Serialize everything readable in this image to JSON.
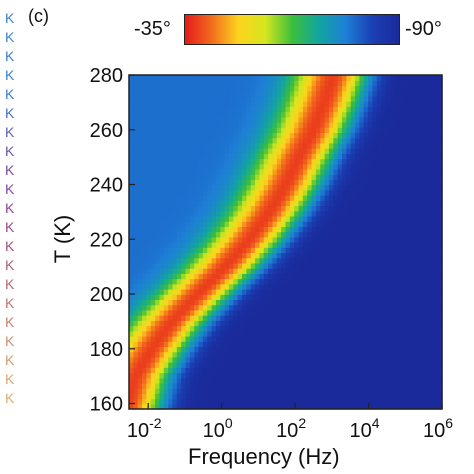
{
  "panel_label": "(c)",
  "colorbar": {
    "min_label": "-35°",
    "max_label": "-90°",
    "stops": [
      "#e41a1c",
      "#f26b1d",
      "#fdd31e",
      "#d6e61e",
      "#3cbf3a",
      "#12a5a0",
      "#1e7fd6",
      "#1a3fb4",
      "#1a2a9a"
    ]
  },
  "left_k_labels": {
    "text": "K",
    "colors": [
      "#3b7fd0",
      "#3b7fd0",
      "#3b7fd0",
      "#3b7fd0",
      "#3b7fd0",
      "#4a6fc4",
      "#5a60b8",
      "#6a55ac",
      "#7a4ca6",
      "#85469f",
      "#8f4496",
      "#9a488d",
      "#a35384",
      "#ac5f7d",
      "#b56b77",
      "#bd7872",
      "#c5856f",
      "#cc916e",
      "#d29c6f",
      "#d8a771",
      "#dcae73"
    ]
  },
  "chart_data": {
    "type": "heatmap",
    "title": "",
    "xlabel": "Frequency (Hz)",
    "ylabel": "T (K)",
    "x_scale": "log",
    "xlim": [
      0.003,
      1000000
    ],
    "ylim": [
      158,
      280
    ],
    "x_ticks": [
      {
        "value": 0.01,
        "base": "10",
        "exp": "-2"
      },
      {
        "value": 1,
        "base": "10",
        "exp": "0"
      },
      {
        "value": 100,
        "base": "10",
        "exp": "2"
      },
      {
        "value": 10000,
        "base": "10",
        "exp": "4"
      },
      {
        "value": 1000000,
        "base": "10",
        "exp": "6"
      }
    ],
    "y_ticks": [
      160,
      180,
      200,
      220,
      240,
      260,
      280
    ],
    "colorbar_range": [
      -35,
      -90
    ],
    "peak_ridge": [
      {
        "T": 158,
        "log_f": -2.6,
        "phase": -37
      },
      {
        "T": 170,
        "log_f": -2.35,
        "phase": -37
      },
      {
        "T": 180,
        "log_f": -1.9,
        "phase": -38
      },
      {
        "T": 190,
        "log_f": -1.35,
        "phase": -38
      },
      {
        "T": 200,
        "log_f": -0.65,
        "phase": -39
      },
      {
        "T": 210,
        "log_f": 0.1,
        "phase": -39
      },
      {
        "T": 220,
        "log_f": 0.75,
        "phase": -39
      },
      {
        "T": 230,
        "log_f": 1.3,
        "phase": -38
      },
      {
        "T": 240,
        "log_f": 1.75,
        "phase": -38
      },
      {
        "T": 250,
        "log_f": 2.1,
        "phase": -38
      },
      {
        "T": 260,
        "log_f": 2.5,
        "phase": -38
      },
      {
        "T": 270,
        "log_f": 2.8,
        "phase": -38
      },
      {
        "T": 280,
        "log_f": 3.05,
        "phase": -38
      }
    ],
    "background_phase_low_freq": -78,
    "background_phase_high_freq": -90,
    "grid": false,
    "legend": "colorbar top"
  }
}
